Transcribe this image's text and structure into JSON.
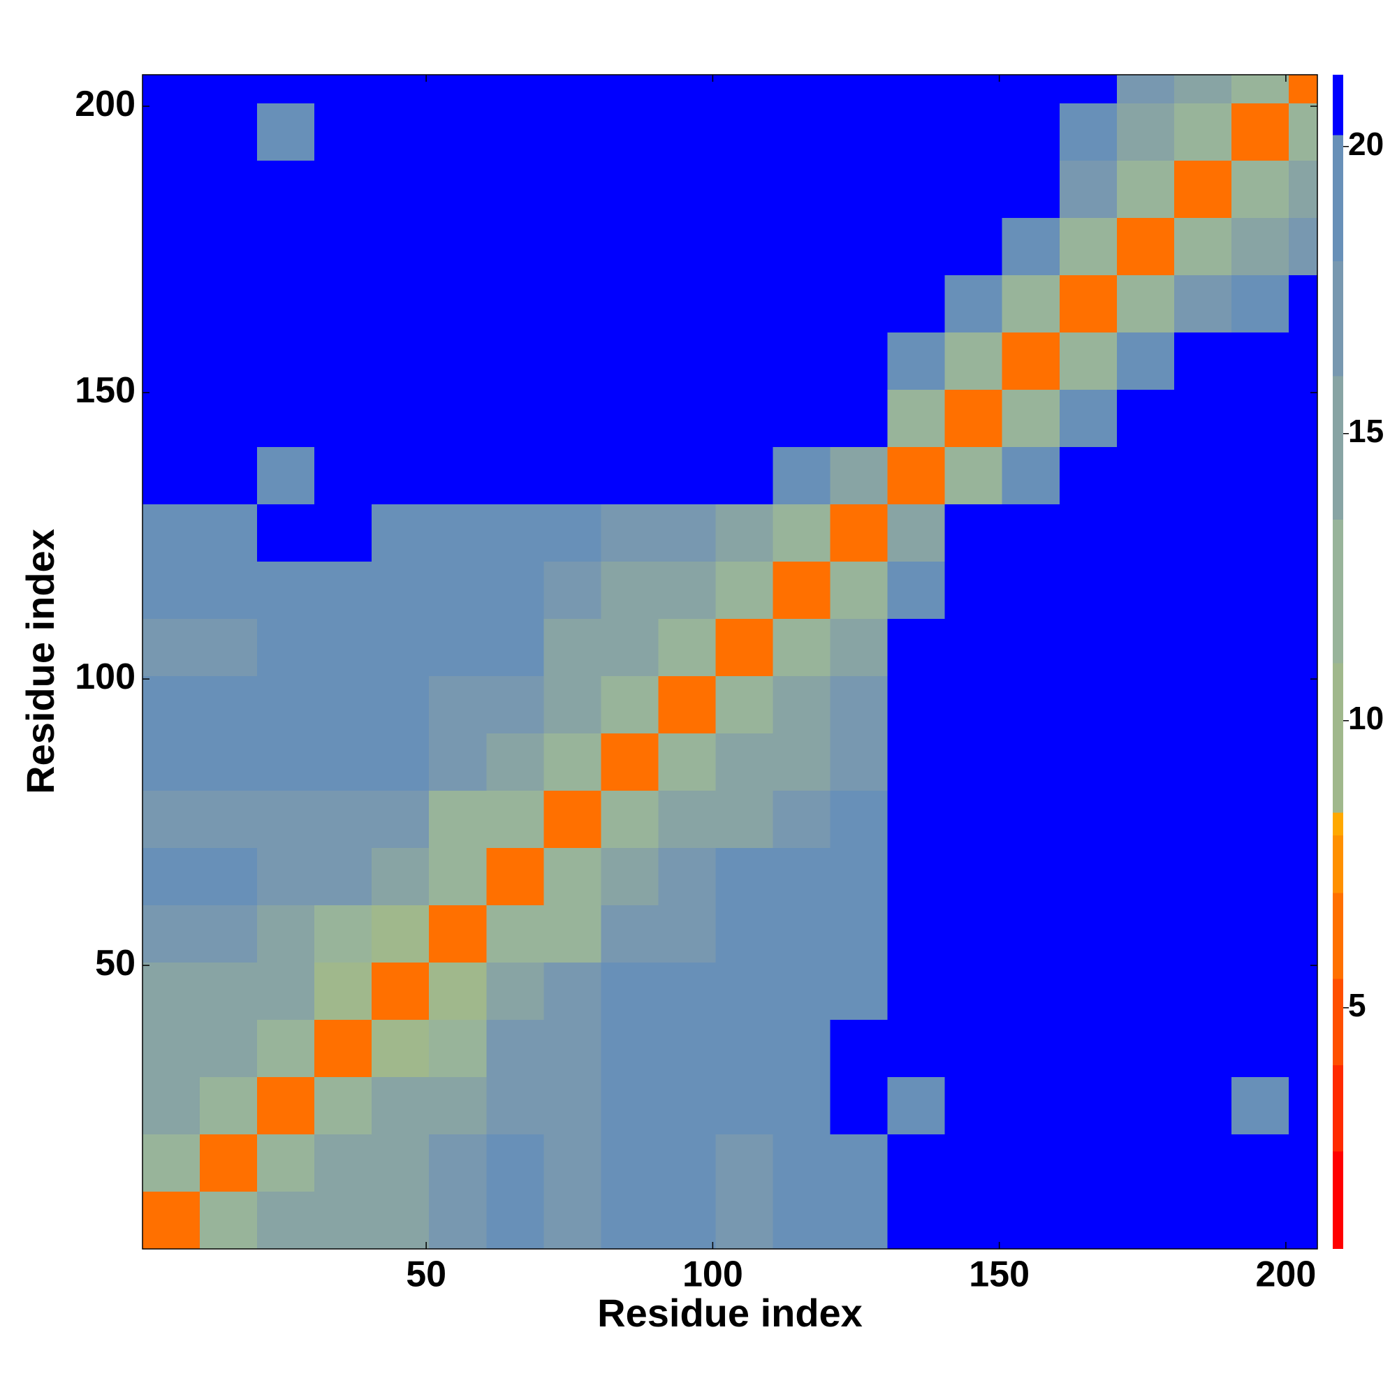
{
  "chart_data": {
    "type": "heatmap",
    "xlabel": "Residue index",
    "ylabel": "Residue index",
    "xlim": [
      0.5,
      205.5
    ],
    "ylim": [
      0.5,
      205.5
    ],
    "xticks": [
      50,
      100,
      150,
      200
    ],
    "yticks": [
      50,
      100,
      150,
      200
    ],
    "xbins": [
      0.5,
      10.5,
      20.5,
      30.5,
      40.5,
      50.5,
      60.5,
      70.5,
      80.5,
      90.5,
      100.5,
      110.5,
      120.5,
      130.5,
      140.5,
      150.5,
      160.5,
      170.5,
      180.5,
      190.5,
      200.5,
      205.5
    ],
    "ybins": [
      0.5,
      10.5,
      20.5,
      30.5,
      40.5,
      50.5,
      60.5,
      70.5,
      80.5,
      90.5,
      100.5,
      110.5,
      120.5,
      130.5,
      140.5,
      150.5,
      160.5,
      170.5,
      180.5,
      190.5,
      200.5,
      205.5
    ],
    "z": [
      [
        6,
        12,
        14,
        15,
        15,
        16,
        19,
        17,
        19,
        20,
        17,
        20,
        20,
        21,
        21,
        21,
        21,
        21,
        21,
        21,
        21
      ],
      [
        12,
        6,
        12,
        14,
        15,
        16,
        18,
        16,
        19,
        20,
        17,
        20,
        20,
        21,
        21,
        21,
        21,
        21,
        21,
        21,
        21
      ],
      [
        14,
        12,
        6,
        12,
        14,
        15,
        17,
        16,
        19,
        20,
        18,
        20,
        21,
        19,
        21,
        21,
        21,
        21,
        21,
        20,
        21
      ],
      [
        15,
        14,
        12,
        6,
        10,
        13,
        16,
        17,
        19,
        20,
        20,
        20,
        21,
        21,
        21,
        21,
        21,
        21,
        21,
        21,
        21
      ],
      [
        15,
        15,
        14,
        10,
        6,
        10,
        14,
        17,
        19,
        20,
        20,
        20,
        18,
        21,
        21,
        21,
        21,
        21,
        21,
        21,
        21
      ],
      [
        16,
        16,
        15,
        13,
        10,
        6,
        11,
        13,
        16,
        16,
        18,
        19,
        18,
        21,
        21,
        21,
        21,
        21,
        21,
        21,
        21
      ],
      [
        19,
        18,
        17,
        16,
        14,
        11,
        6,
        11,
        15,
        17,
        18,
        19,
        19,
        21,
        21,
        21,
        21,
        21,
        21,
        21,
        21
      ],
      [
        17,
        16,
        16,
        17,
        17,
        13,
        11,
        6,
        12,
        14,
        15,
        16,
        18,
        21,
        21,
        21,
        21,
        21,
        21,
        21,
        21
      ],
      [
        19,
        19,
        19,
        19,
        19,
        16,
        15,
        12,
        6,
        11,
        14,
        15,
        16,
        21,
        21,
        21,
        21,
        21,
        21,
        21,
        21
      ],
      [
        20,
        20,
        20,
        20,
        20,
        16,
        17,
        14,
        11,
        6,
        11,
        14,
        16,
        21,
        21,
        21,
        21,
        21,
        21,
        21,
        21
      ],
      [
        17,
        17,
        18,
        20,
        20,
        18,
        18,
        15,
        14,
        11,
        6,
        11,
        15,
        21,
        21,
        21,
        21,
        21,
        21,
        21,
        21
      ],
      [
        20,
        20,
        20,
        20,
        20,
        19,
        19,
        16,
        15,
        14,
        11,
        6,
        11,
        19,
        21,
        21,
        21,
        21,
        21,
        21,
        21
      ],
      [
        20,
        20,
        21,
        21,
        18,
        18,
        19,
        18,
        16,
        16,
        15,
        11,
        6,
        15,
        21,
        21,
        21,
        21,
        21,
        21,
        21
      ],
      [
        21,
        21,
        19,
        21,
        21,
        21,
        21,
        21,
        21,
        21,
        21,
        19,
        15,
        6,
        12,
        18,
        21,
        21,
        21,
        21,
        21
      ],
      [
        21,
        21,
        21,
        21,
        21,
        21,
        21,
        21,
        21,
        21,
        21,
        21,
        21,
        12,
        6,
        12,
        18,
        21,
        21,
        21,
        21
      ],
      [
        21,
        21,
        21,
        21,
        21,
        21,
        21,
        21,
        21,
        21,
        21,
        21,
        21,
        18,
        12,
        6,
        13,
        19,
        21,
        21,
        21
      ],
      [
        21,
        21,
        21,
        21,
        21,
        21,
        21,
        21,
        21,
        21,
        21,
        21,
        21,
        21,
        18,
        13,
        6,
        12,
        17,
        19,
        21
      ],
      [
        21,
        21,
        21,
        21,
        21,
        21,
        21,
        21,
        21,
        21,
        21,
        21,
        21,
        21,
        21,
        19,
        12,
        6,
        11,
        14,
        16
      ],
      [
        21,
        21,
        21,
        21,
        21,
        21,
        21,
        21,
        21,
        21,
        21,
        21,
        21,
        21,
        21,
        21,
        17,
        11,
        6,
        11,
        14
      ],
      [
        21,
        21,
        20,
        21,
        21,
        21,
        21,
        21,
        21,
        21,
        21,
        21,
        21,
        21,
        21,
        21,
        19,
        14,
        11,
        6,
        11
      ],
      [
        21,
        21,
        21,
        21,
        21,
        21,
        21,
        21,
        21,
        21,
        21,
        21,
        21,
        21,
        21,
        21,
        21,
        16,
        14,
        11,
        6
      ]
    ],
    "colorbar": {
      "clim": [
        0.8,
        21.25
      ],
      "ticks": [
        5,
        10,
        15,
        20
      ],
      "colorscale": [
        {
          "value": 0.8,
          "color": "#ff0000"
        },
        {
          "value": 2.5,
          "color": "#ff2a00"
        },
        {
          "value": 4,
          "color": "#ff4f00"
        },
        {
          "value": 5.5,
          "color": "#ff7000"
        },
        {
          "value": 7,
          "color": "#ff9000"
        },
        {
          "value": 8,
          "color": "#ffa800"
        },
        {
          "value": 8.4,
          "color": "#a0b88c"
        },
        {
          "value": 11,
          "color": "#98b49a"
        },
        {
          "value": 13.5,
          "color": "#88a4a4"
        },
        {
          "value": 16,
          "color": "#7898b0"
        },
        {
          "value": 18,
          "color": "#6890b8"
        },
        {
          "value": 20.2,
          "color": "#0000ff"
        }
      ]
    }
  }
}
